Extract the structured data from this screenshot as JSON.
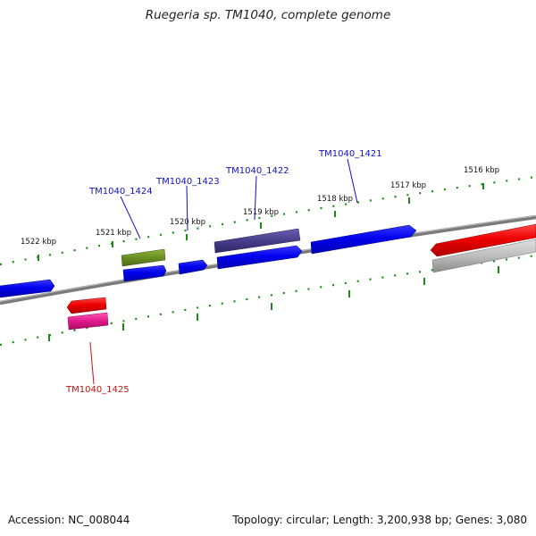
{
  "title": "Ruegeria sp. TM1040, complete genome",
  "footer": {
    "accession": "Accession: NC_008044",
    "summary": "Topology: circular; Length: 3,200,938 bp; Genes: 3,080"
  },
  "ruler_labels": [
    "1522 kbp",
    "1521 kbp",
    "1520 kbp",
    "1519 kbp",
    "1518 kbp",
    "1517 kbp",
    "1516 kbp"
  ],
  "gene_labels": [
    {
      "name": "TM1040_1424",
      "color": "#1010c8"
    },
    {
      "name": "TM1040_1423",
      "color": "#1010c8"
    },
    {
      "name": "TM1040_1422",
      "color": "#1010c8"
    },
    {
      "name": "TM1040_1421",
      "color": "#1010c8"
    },
    {
      "name": "TM1040_1425",
      "color": "#c81010"
    }
  ],
  "colors": {
    "cds": "#0000ee",
    "gene": "#ee0000",
    "olive": "#6b8e23",
    "purple": "#483d8b",
    "pink": "#e0188a",
    "grey": "#aaaaaa",
    "ruler": "#1a8a1a",
    "backbone": "#7a7a7a"
  }
}
